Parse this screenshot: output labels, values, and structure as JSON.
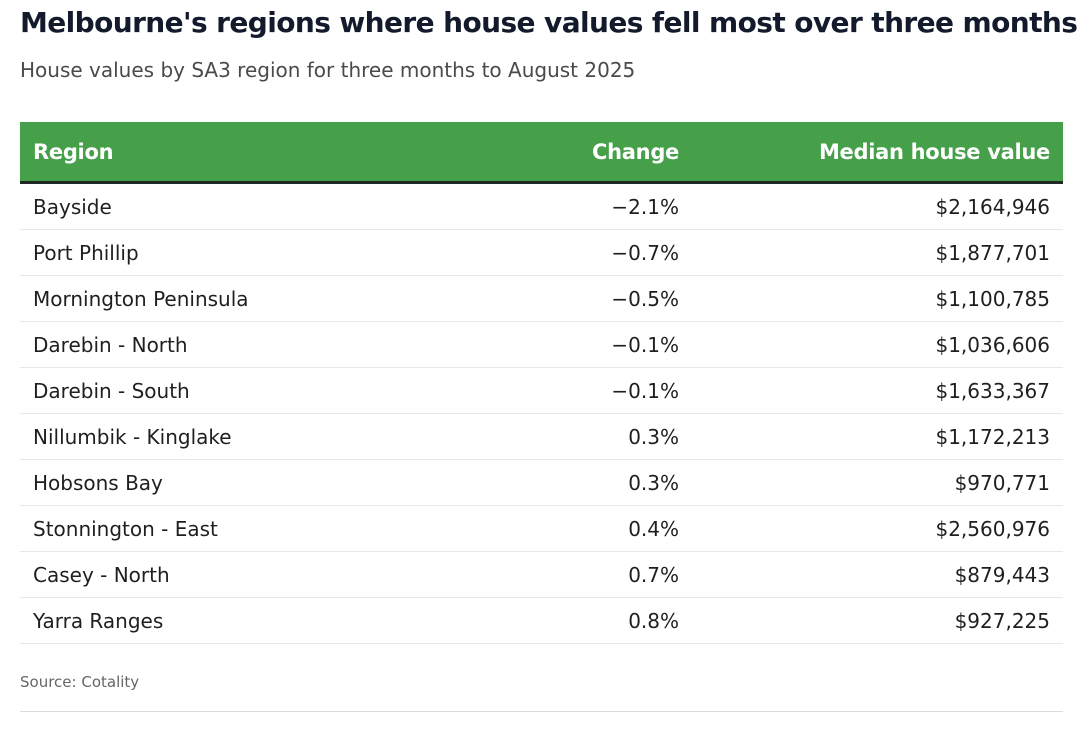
{
  "title": "Melbourne's regions where house values fell most over three months",
  "subtitle": "House values by SA3 region for three months to August 2025",
  "source": "Source: Cotality",
  "colors": {
    "header_bg": "#45a049",
    "header_text": "#ffffff",
    "title_text": "#121a2c"
  },
  "chart_data": {
    "type": "table",
    "title": "Melbourne's regions where house values fell most over three months",
    "subtitle": "House values by SA3 region for three months to August 2025",
    "columns": [
      "Region",
      "Change",
      "Median house value"
    ],
    "rows": [
      [
        "Bayside",
        "−2.1%",
        "$2,164,946"
      ],
      [
        "Port Phillip",
        "−0.7%",
        "$1,877,701"
      ],
      [
        "Mornington Peninsula",
        "−0.5%",
        "$1,100,785"
      ],
      [
        "Darebin - North",
        "−0.1%",
        "$1,036,606"
      ],
      [
        "Darebin - South",
        "−0.1%",
        "$1,633,367"
      ],
      [
        "Nillumbik - Kinglake",
        "0.3%",
        "$1,172,213"
      ],
      [
        "Hobsons Bay",
        "0.3%",
        "$970,771"
      ],
      [
        "Stonnington - East",
        "0.4%",
        "$2,560,976"
      ],
      [
        "Casey - North",
        "0.7%",
        "$879,443"
      ],
      [
        "Yarra Ranges",
        "0.8%",
        "$927,225"
      ]
    ],
    "source": "Source: Cotality"
  }
}
